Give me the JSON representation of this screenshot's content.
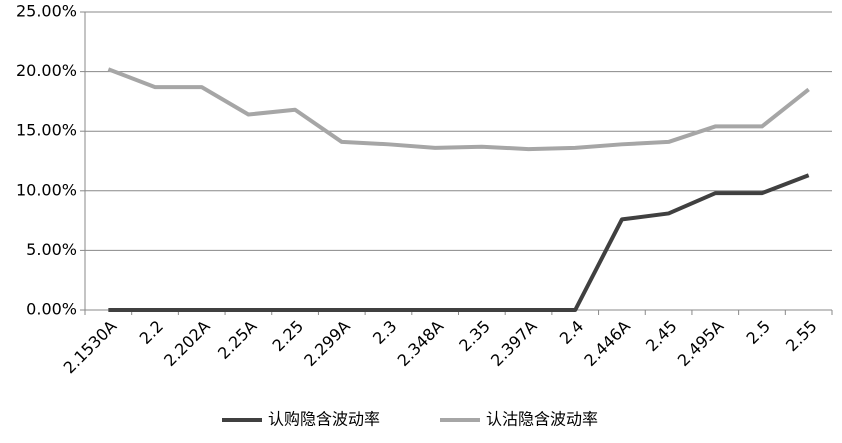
{
  "chart_data": {
    "type": "line",
    "categories": [
      "2.1530A",
      "2.2",
      "2.202A",
      "2.25A",
      "2.25",
      "2.299A",
      "2.3",
      "2.348A",
      "2.35",
      "2.397A",
      "2.4",
      "2.446A",
      "2.45",
      "2.495A",
      "2.5",
      "2.55"
    ],
    "series": [
      {
        "name": "认购隐含波动率",
        "color": "#404040",
        "values": [
          0,
          0,
          0,
          0,
          0,
          0,
          0,
          0,
          0,
          0,
          0,
          7.6,
          8.1,
          9.8,
          9.8,
          11.3
        ]
      },
      {
        "name": "认沽隐含波动率",
        "color": "#a6a6a6",
        "values": [
          20.2,
          18.7,
          18.7,
          16.4,
          16.8,
          14.1,
          13.9,
          13.6,
          13.7,
          13.5,
          13.6,
          13.9,
          14.1,
          15.4,
          15.4,
          18.5
        ]
      }
    ],
    "ylim": [
      0,
      25
    ],
    "yticks": [
      {
        "value": 0,
        "label": "0.00%"
      },
      {
        "value": 5,
        "label": "5.00%"
      },
      {
        "value": 10,
        "label": "10.00%"
      },
      {
        "value": 15,
        "label": "15.00%"
      },
      {
        "value": 20,
        "label": "20.00%"
      },
      {
        "value": 25,
        "label": "25.00%"
      }
    ],
    "grid": true,
    "legend": "bottom"
  }
}
